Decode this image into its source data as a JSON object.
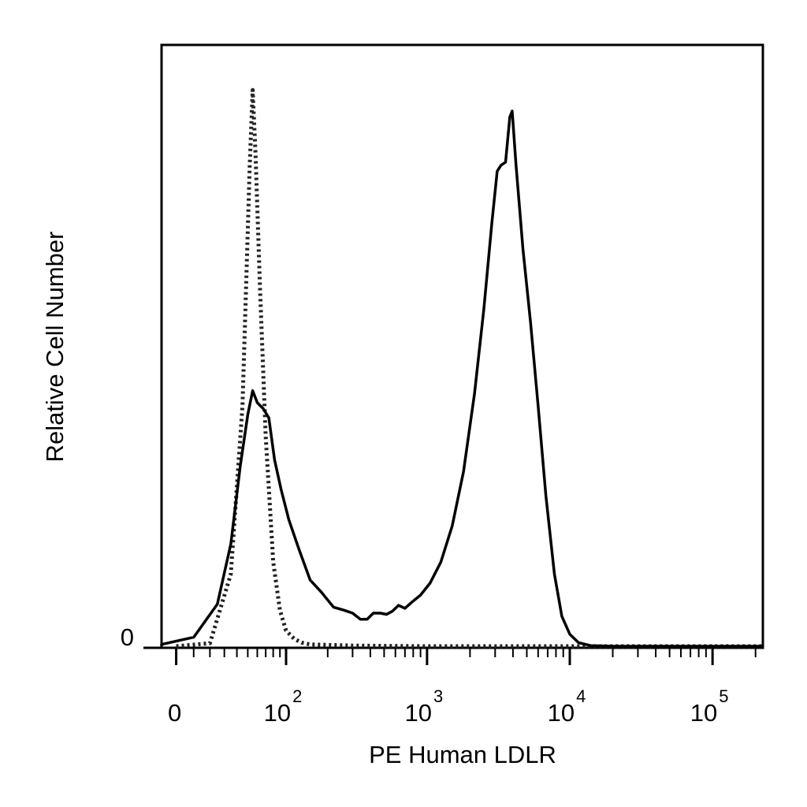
{
  "chart_data": {
    "type": "line",
    "title": "",
    "xlabel": "PE Human LDLR",
    "ylabel": "Relative Cell Number",
    "x_scale": "biexponential",
    "x_tick_labels": [
      {
        "base": "0",
        "exp": "",
        "value": 0
      },
      {
        "base": "10",
        "exp": "2",
        "value": 100
      },
      {
        "base": "10",
        "exp": "3",
        "value": 1000
      },
      {
        "base": "10",
        "exp": "4",
        "value": 10000
      },
      {
        "base": "10",
        "exp": "5",
        "value": 100000
      }
    ],
    "y_tick_labels": [
      {
        "label": "0",
        "value": 0
      }
    ],
    "ylim": [
      0,
      100
    ],
    "grid": false,
    "legend": "none",
    "series": [
      {
        "style": "dotted",
        "color": "#222222",
        "points": [
          [
            0,
            0
          ],
          [
            20,
            0.5
          ],
          [
            35,
            12
          ],
          [
            45,
            40
          ],
          [
            52,
            80
          ],
          [
            55,
            92.5
          ],
          [
            58,
            82
          ],
          [
            63,
            60
          ],
          [
            70,
            35
          ],
          [
            80,
            14
          ],
          [
            90,
            6
          ],
          [
            100,
            2.6
          ],
          [
            115,
            1.2
          ],
          [
            130,
            0.6
          ],
          [
            150,
            0.3
          ],
          [
            300,
            0.1
          ],
          [
            1000,
            0
          ],
          [
            10000,
            0
          ],
          [
            100000,
            0
          ],
          [
            250000,
            0
          ]
        ]
      },
      {
        "style": "solid",
        "color": "#000000",
        "points": [
          [
            -50,
            0
          ],
          [
            -10,
            0.3
          ],
          [
            10,
            1.5
          ],
          [
            25,
            7
          ],
          [
            35,
            17
          ],
          [
            43,
            30
          ],
          [
            50,
            38.5
          ],
          [
            55,
            42.5
          ],
          [
            60,
            40.5
          ],
          [
            67,
            39.5
          ],
          [
            74,
            38
          ],
          [
            82,
            31
          ],
          [
            92,
            26
          ],
          [
            105,
            21
          ],
          [
            125,
            16
          ],
          [
            150,
            11
          ],
          [
            180,
            9
          ],
          [
            220,
            6.5
          ],
          [
            260,
            6
          ],
          [
            300,
            5.5
          ],
          [
            340,
            4.5
          ],
          [
            380,
            4.5
          ],
          [
            420,
            5.5
          ],
          [
            470,
            5.5
          ],
          [
            520,
            5.3
          ],
          [
            570,
            5.8
          ],
          [
            630,
            6.8
          ],
          [
            700,
            6.3
          ],
          [
            780,
            7.3
          ],
          [
            900,
            8.5
          ],
          [
            1050,
            10.5
          ],
          [
            1250,
            14
          ],
          [
            1500,
            20
          ],
          [
            1800,
            29
          ],
          [
            2150,
            42
          ],
          [
            2500,
            56
          ],
          [
            2850,
            70.5
          ],
          [
            3100,
            79
          ],
          [
            3300,
            80
          ],
          [
            3550,
            80.5
          ],
          [
            3800,
            88
          ],
          [
            3950,
            89
          ],
          [
            4200,
            80
          ],
          [
            4700,
            66
          ],
          [
            5300,
            54
          ],
          [
            6000,
            40
          ],
          [
            6800,
            25
          ],
          [
            7800,
            12
          ],
          [
            8800,
            5
          ],
          [
            10000,
            2
          ],
          [
            11500,
            0.6
          ],
          [
            14000,
            0.1
          ],
          [
            20000,
            0
          ],
          [
            100000,
            0
          ],
          [
            250000,
            0
          ]
        ]
      }
    ]
  }
}
